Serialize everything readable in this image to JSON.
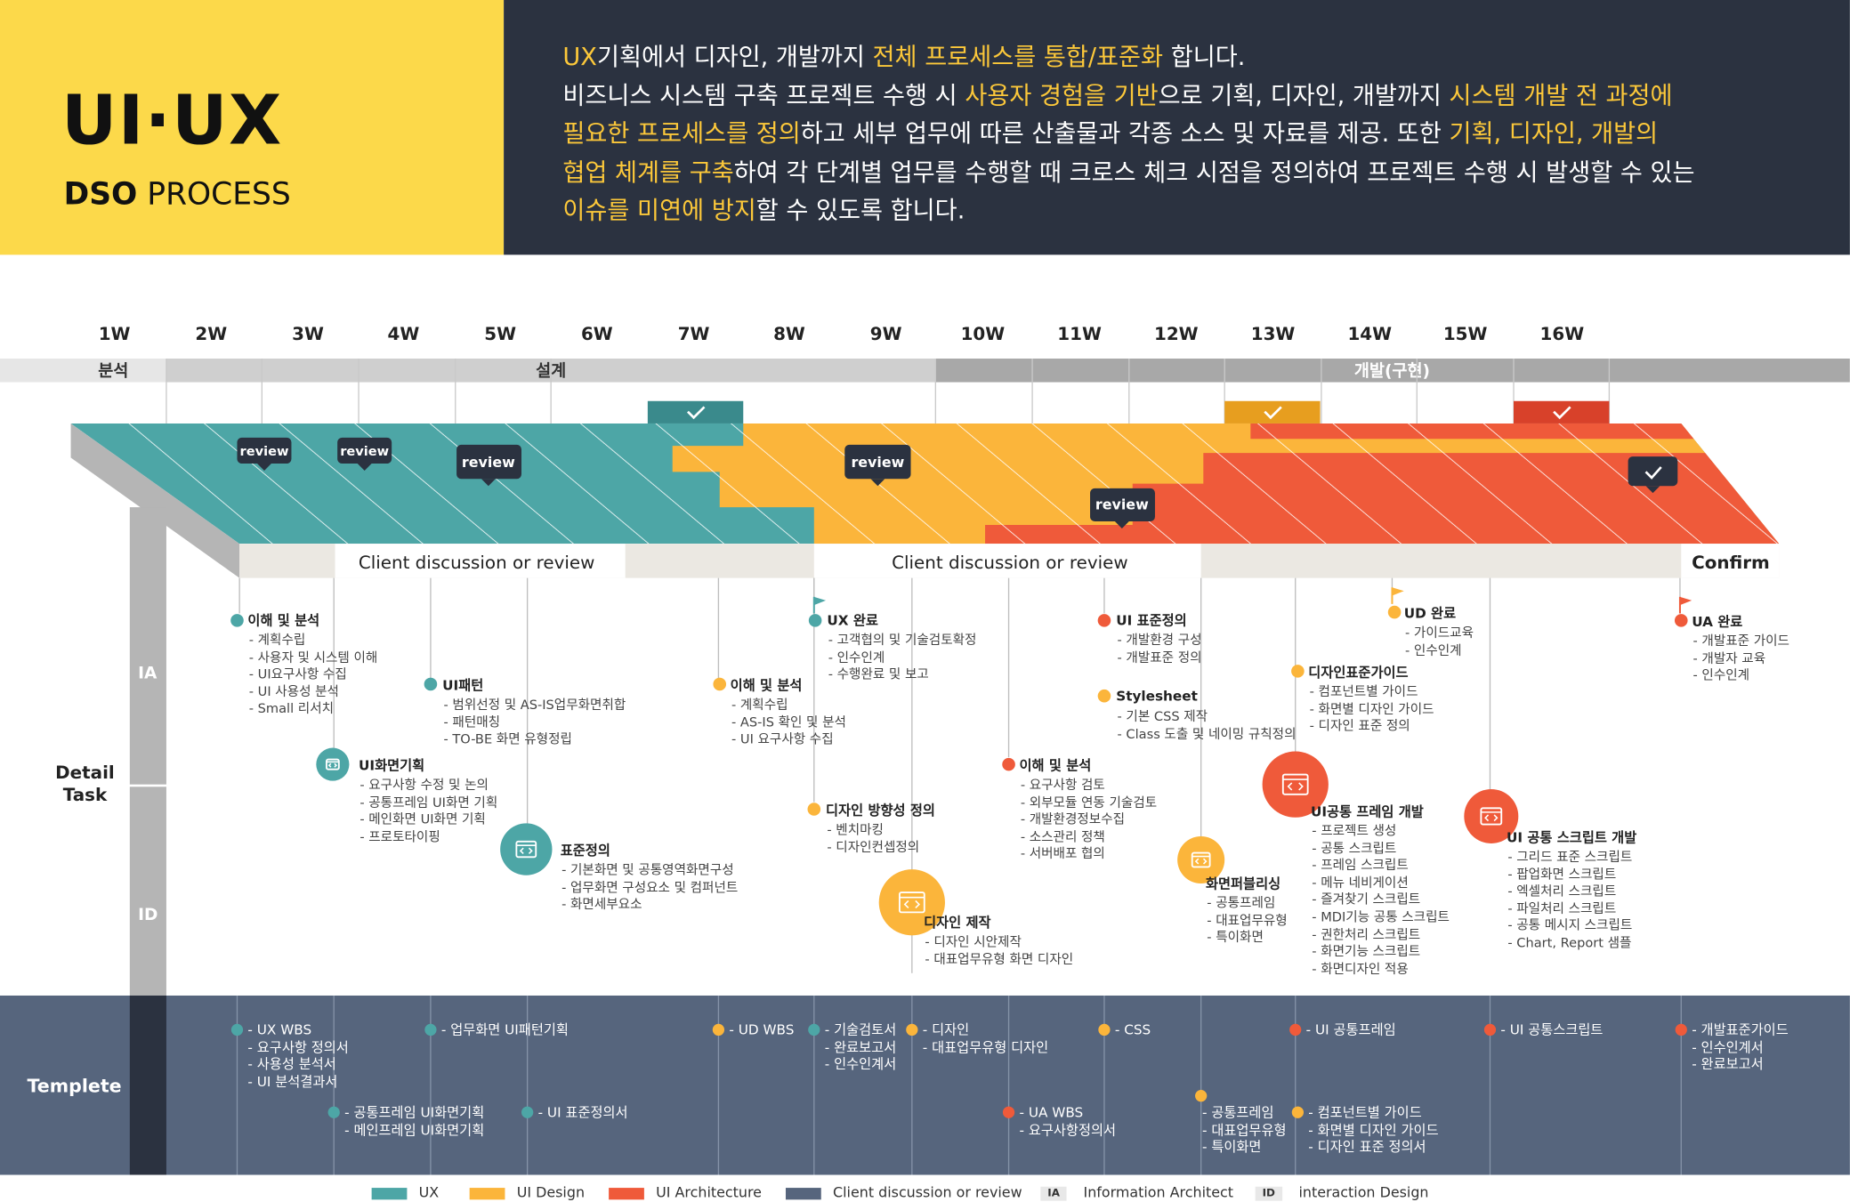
{
  "header": {
    "title_main": "UI·UX",
    "title_sub_bold": "DSO",
    "title_sub_rest": " PROCESS",
    "intro": [
      [
        {
          "t": "UX",
          "hl": true
        },
        {
          "t": "기획에서 디자인, 개발까지 ",
          "hl": false
        },
        {
          "t": "전체 프로세스를 통합/표준화",
          "hl": true
        },
        {
          "t": " 합니다.",
          "hl": false
        }
      ],
      [
        {
          "t": "비즈니스 시스템 구축 프로젝트 수행 시 ",
          "hl": false
        },
        {
          "t": "사용자 경험을 기반",
          "hl": true
        },
        {
          "t": "으로 기획, 디자인, 개발까지 ",
          "hl": false
        },
        {
          "t": "시스템 개발 전 과정에",
          "hl": true
        }
      ],
      [
        {
          "t": "필요한 프로세스를 정의",
          "hl": true
        },
        {
          "t": "하고 세부 업무에 따른 산출물과 각종 소스 및 자료를 제공. 또한 ",
          "hl": false
        },
        {
          "t": "기획, 디자인, 개발의",
          "hl": true
        }
      ],
      [
        {
          "t": "협업 체계를 구축",
          "hl": true
        },
        {
          "t": "하여 각 단계별 업무를 수행할 때 크로스 체크 시점을 정의하여 프로젝트 수행 시 발생할 수 있는",
          "hl": false
        }
      ],
      [
        {
          "t": "이슈를 미연에 방지",
          "hl": true
        },
        {
          "t": "할 수 있도록 합니다.",
          "hl": false
        }
      ]
    ]
  },
  "weeks": [
    "1W",
    "2W",
    "3W",
    "4W",
    "5W",
    "6W",
    "7W",
    "8W",
    "9W",
    "10W",
    "11W",
    "12W",
    "13W",
    "14W",
    "15W",
    "16W"
  ],
  "phases": {
    "analysis": "분석",
    "design": "설계",
    "dev": "개발(구현)"
  },
  "review_label": "review",
  "discussion": {
    "label_1": "Client discussion or review",
    "label_2": "Client discussion or review",
    "confirm": "Confirm"
  },
  "side": {
    "detail": "Detail",
    "task": "Task",
    "ia": "IA",
    "id": "ID",
    "templete": "Templete"
  },
  "colors": {
    "ux": "#4da6a6",
    "ui_design": "#fbb53b",
    "ui_arch": "#ef5a3a",
    "client": "#56657d",
    "dark": "#2b3240",
    "yellow": "#fcd94a"
  },
  "tasks": [
    {
      "title": "이해 및 분석",
      "lines": [
        "- 계획수립",
        "- 사용자 및 시스템 이해",
        "- UI요구사항 수집",
        "- UI 사용성 분석",
        "- Small 리서치"
      ]
    },
    {
      "title": "UI패턴",
      "lines": [
        "- 범위선정 및 AS-IS업무화면취합",
        "- 패턴매칭",
        "- TO-BE 화면 유형정립"
      ]
    },
    {
      "title": "UI화면기획",
      "lines": [
        "- 요구사항 수정 및 논의",
        "- 공통프레임 UI화면 기획",
        "- 메인화면 UI화면 기획",
        "- 프로토타이핑"
      ]
    },
    {
      "title": "표준정의",
      "lines": [
        "- 기본화면 및 공통영역화면구성",
        "- 업무화면 구성요소 및 컴퍼넌트",
        "- 화면세부요소"
      ]
    },
    {
      "title": "이해 및 분석",
      "lines": [
        "- 계획수립",
        "- AS-IS 확인 및 분석",
        "- UI 요구사항 수집"
      ]
    },
    {
      "title": "UX 완료",
      "lines": [
        "- 고객협의 및 기술검토확정",
        "- 인수인계",
        "- 수행완료 및 보고"
      ]
    },
    {
      "title": "디자인 방향성 정의",
      "lines": [
        "- 벤치마킹",
        "- 디자인컨셉정의"
      ]
    },
    {
      "title": "디자인 제작",
      "lines": [
        "- 디자인 시안제작",
        "- 대표업무유형 화면 디자인"
      ]
    },
    {
      "title": "UI 표준정의",
      "lines": [
        "- 개발환경 구성",
        "- 개발표준 정의"
      ]
    },
    {
      "title": "Stylesheet",
      "lines": [
        "- 기본 CSS 제작",
        "- Class 도출 및 네이밍 규칙정의"
      ]
    },
    {
      "title": "이해 및 분석",
      "lines": [
        "- 요구사항 검토",
        "- 외부모듈 연동 기술검토",
        "- 개발환경정보수집",
        "- 소스관리 정책",
        "- 서버배포 협의"
      ]
    },
    {
      "title": "화면퍼블리싱",
      "lines": [
        "- 공통프레임",
        "- 대표업무유형",
        "- 특이화면"
      ]
    },
    {
      "title": "UD 완료",
      "lines": [
        "- 가이드교육",
        "- 인수인계"
      ]
    },
    {
      "title": "디자인표준가이드",
      "lines": [
        "- 컴포넌트별 가이드",
        "- 화면별 디자인 가이드",
        "- 디자인 표준 정의"
      ]
    },
    {
      "title": "UI공통 프레임 개발",
      "lines": [
        "- 프로젝트 생성",
        "- 공통 스크립트",
        "- 프레임 스크립트",
        "- 메뉴 네비게이션",
        "- 즐겨찾기 스크립트",
        "- MDI기능 공통 스크립트",
        "- 권한처리 스크립트",
        "- 화면기능 스크립트",
        "- 화면디자인 적용"
      ]
    },
    {
      "title": "UI 공통 스크립트 개발",
      "lines": [
        "- 그리드 표준 스크립트",
        "- 팝업화면 스크립트",
        "- 엑셀처리 스크립트",
        "- 파일처리 스크립트",
        "- 공통 메시지 스크립트",
        "- Chart, Report 샘플"
      ]
    },
    {
      "title": "UA 완료",
      "lines": [
        "- 개발표준 가이드",
        "- 개발자 교육",
        "- 인수인계"
      ]
    }
  ],
  "templates": [
    {
      "lines": [
        "- UX WBS",
        "- 요구사항 정의서",
        "- 사용성 분석서",
        "- UI 분석결과서"
      ]
    },
    {
      "lines": [
        "- 업무화면 UI패턴기획"
      ]
    },
    {
      "lines": [
        "- 공통프레임 UI화면기획",
        "- 메인프레임 UI화면기획"
      ]
    },
    {
      "lines": [
        "- UI 표준정의서"
      ]
    },
    {
      "lines": [
        "- UD WBS"
      ]
    },
    {
      "lines": [
        "- 기술검토서",
        "- 완료보고서",
        "- 인수인계서"
      ]
    },
    {
      "lines": [
        "- 디자인",
        "- 대표업무유형 디자인"
      ]
    },
    {
      "lines": [
        "- CSS"
      ]
    },
    {
      "lines": [
        "- UA WBS",
        "- 요구사항정의서"
      ]
    },
    {
      "lines": [
        "- 공통프레임",
        "- 대표업무유형",
        "- 특이화면"
      ]
    },
    {
      "lines": [
        "- UI 공통프레임"
      ]
    },
    {
      "lines": [
        "- 컴포넌트별 가이드",
        "- 화면별 디자인 가이드",
        "- 디자인 표준 정의서"
      ]
    },
    {
      "lines": [
        "- UI 공통스크립트"
      ]
    },
    {
      "lines": [
        "- 개발표준가이드",
        "- 인수인계서",
        "- 완료보고서"
      ]
    }
  ],
  "legend": {
    "ux": "UX",
    "ui_design": "UI Design",
    "ui_arch": "UI Architecture",
    "client": "Client discussion or review",
    "ia_tag": "IA",
    "ia": "Information Architect",
    "id_tag": "ID",
    "id": "interaction Design"
  }
}
